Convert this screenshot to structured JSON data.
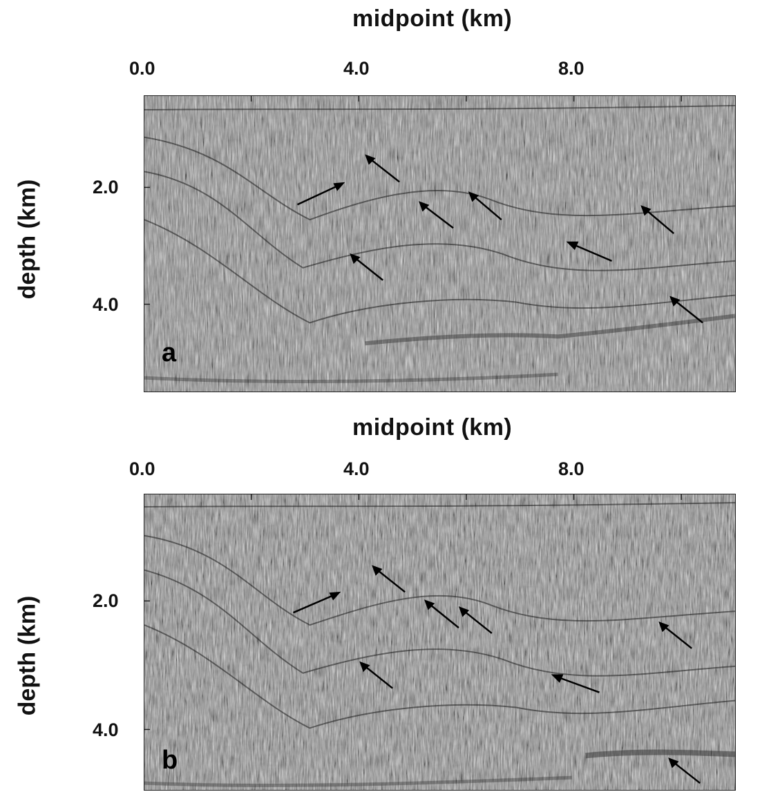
{
  "panels": [
    {
      "letter": "a",
      "xlabel": "midpoint (km)",
      "ylabel": "depth (km)",
      "xticks": [
        "0.0",
        "4.0",
        "8.0"
      ],
      "yticks": [
        "2.0",
        "4.0"
      ]
    },
    {
      "letter": "b",
      "xlabel": "midpoint (km)",
      "ylabel": "depth (km)",
      "xticks": [
        "0.0",
        "4.0",
        "8.0"
      ],
      "yticks": [
        "2.0",
        "4.0"
      ]
    }
  ],
  "image_style": {
    "colormap": "grayscale seismic section",
    "background": "#8c8c8c",
    "arrow_color": "#000000"
  }
}
